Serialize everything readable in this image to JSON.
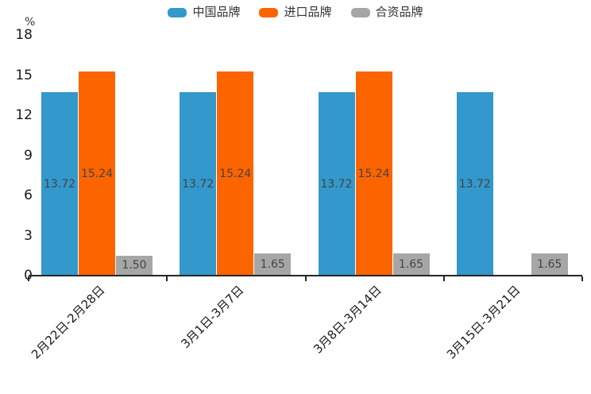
{
  "legend": {
    "items": [
      {
        "label": "中国品牌",
        "color": "#3398CC"
      },
      {
        "label": "进口品牌",
        "color": "#FC6400"
      },
      {
        "label": "合资品牌",
        "color": "#A6A6A6"
      }
    ]
  },
  "y_axis": {
    "unit": "%"
  },
  "chart_data": {
    "type": "bar",
    "title": "",
    "xlabel": "",
    "ylabel": "%",
    "categories": [
      "2月22日-2月28日",
      "3月1日-3月7日",
      "3月8日-3月14日",
      "3月15日-3月21日"
    ],
    "series": [
      {
        "name": "中国品牌",
        "color": "#3398CC",
        "values": [
          13.72,
          13.72,
          13.72,
          13.72
        ]
      },
      {
        "name": "进口品牌",
        "color": "#FC6400",
        "values": [
          15.24,
          15.24,
          15.24,
          null
        ]
      },
      {
        "name": "合资品牌",
        "color": "#A6A6A6",
        "values": [
          1.5,
          1.65,
          1.65,
          1.65
        ]
      }
    ],
    "value_label_decimals": 2,
    "ylim": [
      0,
      18
    ],
    "y_tick_step": 3,
    "y_tick_labels": [
      "0",
      "3",
      "6",
      "9",
      "12",
      "15",
      "18"
    ],
    "grid": false,
    "legend_position": "top",
    "value_labels": "inside-center"
  }
}
